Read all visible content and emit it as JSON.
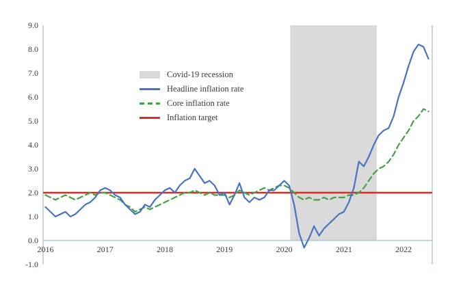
{
  "chart_data": {
    "type": "line",
    "title": "",
    "xlabel": "",
    "ylabel": "",
    "xlim": [
      2015.96,
      2022.48
    ],
    "ylim": [
      -1,
      9
    ],
    "yticks": [
      9,
      8,
      7,
      6,
      5,
      4,
      3,
      2,
      1,
      0,
      -1
    ],
    "xticks": [
      2016,
      2017,
      2018,
      2019,
      2020,
      2021,
      2022
    ],
    "x": {
      "start": 2016.0,
      "step": 0.0833333,
      "unit": "decimal-year",
      "frequency": "monthly"
    },
    "series": [
      {
        "name": "Headline inflation rate",
        "color": "#4472c4",
        "dash": "",
        "width": 2.2,
        "values": [
          1.4,
          1.2,
          1.0,
          1.1,
          1.2,
          1.0,
          1.1,
          1.3,
          1.5,
          1.6,
          1.8,
          2.1,
          2.2,
          2.1,
          1.9,
          1.8,
          1.5,
          1.3,
          1.1,
          1.2,
          1.5,
          1.4,
          1.7,
          1.9,
          2.1,
          2.2,
          2.0,
          2.3,
          2.5,
          2.6,
          3.0,
          2.7,
          2.4,
          2.5,
          2.3,
          1.9,
          2.0,
          1.5,
          1.9,
          2.4,
          1.8,
          1.6,
          1.8,
          1.7,
          1.8,
          2.1,
          2.1,
          2.3,
          2.5,
          2.3,
          1.5,
          0.3,
          -0.3,
          0.1,
          0.6,
          0.2,
          0.5,
          0.7,
          0.9,
          1.1,
          1.2,
          1.6,
          2.2,
          3.3,
          3.1,
          3.5,
          4.0,
          4.4,
          4.6,
          4.7,
          5.2,
          6.0,
          6.6,
          7.3,
          7.9,
          8.2,
          8.1,
          7.6
        ]
      },
      {
        "name": "Core inflation rate",
        "color": "#42a046",
        "dash": "8 5",
        "width": 2.2,
        "values": [
          1.9,
          1.8,
          1.7,
          1.8,
          1.9,
          1.8,
          1.7,
          1.8,
          1.9,
          2.0,
          1.9,
          2.0,
          2.0,
          1.9,
          1.8,
          1.7,
          1.5,
          1.4,
          1.2,
          1.3,
          1.4,
          1.3,
          1.4,
          1.5,
          1.6,
          1.7,
          1.8,
          1.9,
          2.0,
          2.0,
          2.1,
          2.0,
          1.9,
          2.0,
          1.9,
          1.9,
          1.9,
          1.8,
          1.9,
          2.1,
          2.0,
          1.9,
          2.0,
          2.1,
          2.2,
          2.1,
          2.2,
          2.3,
          2.3,
          2.2,
          2.0,
          1.8,
          1.7,
          1.8,
          1.7,
          1.7,
          1.8,
          1.7,
          1.8,
          1.8,
          1.8,
          1.9,
          1.9,
          2.0,
          2.2,
          2.5,
          2.8,
          3.0,
          3.1,
          3.3,
          3.6,
          4.0,
          4.3,
          4.6,
          5.0,
          5.2,
          5.5,
          5.4
        ]
      }
    ],
    "target": {
      "name": "Inflation target",
      "value": 2.0,
      "color": "#e02b20",
      "width": 2.5
    },
    "recession_band": {
      "name": "Covid-19 recession",
      "x0": 2020.1,
      "x1": 2021.55,
      "y0": 0,
      "y1": 9,
      "color": "#d9d9d9"
    },
    "legend": [
      {
        "label": "Covid-19 recession",
        "type": "band",
        "color": "#d9d9d9",
        "dash": ""
      },
      {
        "label": "Headline inflation rate",
        "type": "line",
        "color": "#4472c4",
        "dash": ""
      },
      {
        "label": "Core inflation rate",
        "type": "line",
        "color": "#42a046",
        "dash": "7 5"
      },
      {
        "label": "Inflation target",
        "type": "line",
        "color": "#e02b20",
        "dash": ""
      }
    ],
    "legend_position": "upper-left-inside",
    "grid": false,
    "colors": {
      "axis": "#aec6e2",
      "band": "#d9d9d9",
      "text": "#3b3b3b",
      "background": "#ffffff"
    }
  }
}
